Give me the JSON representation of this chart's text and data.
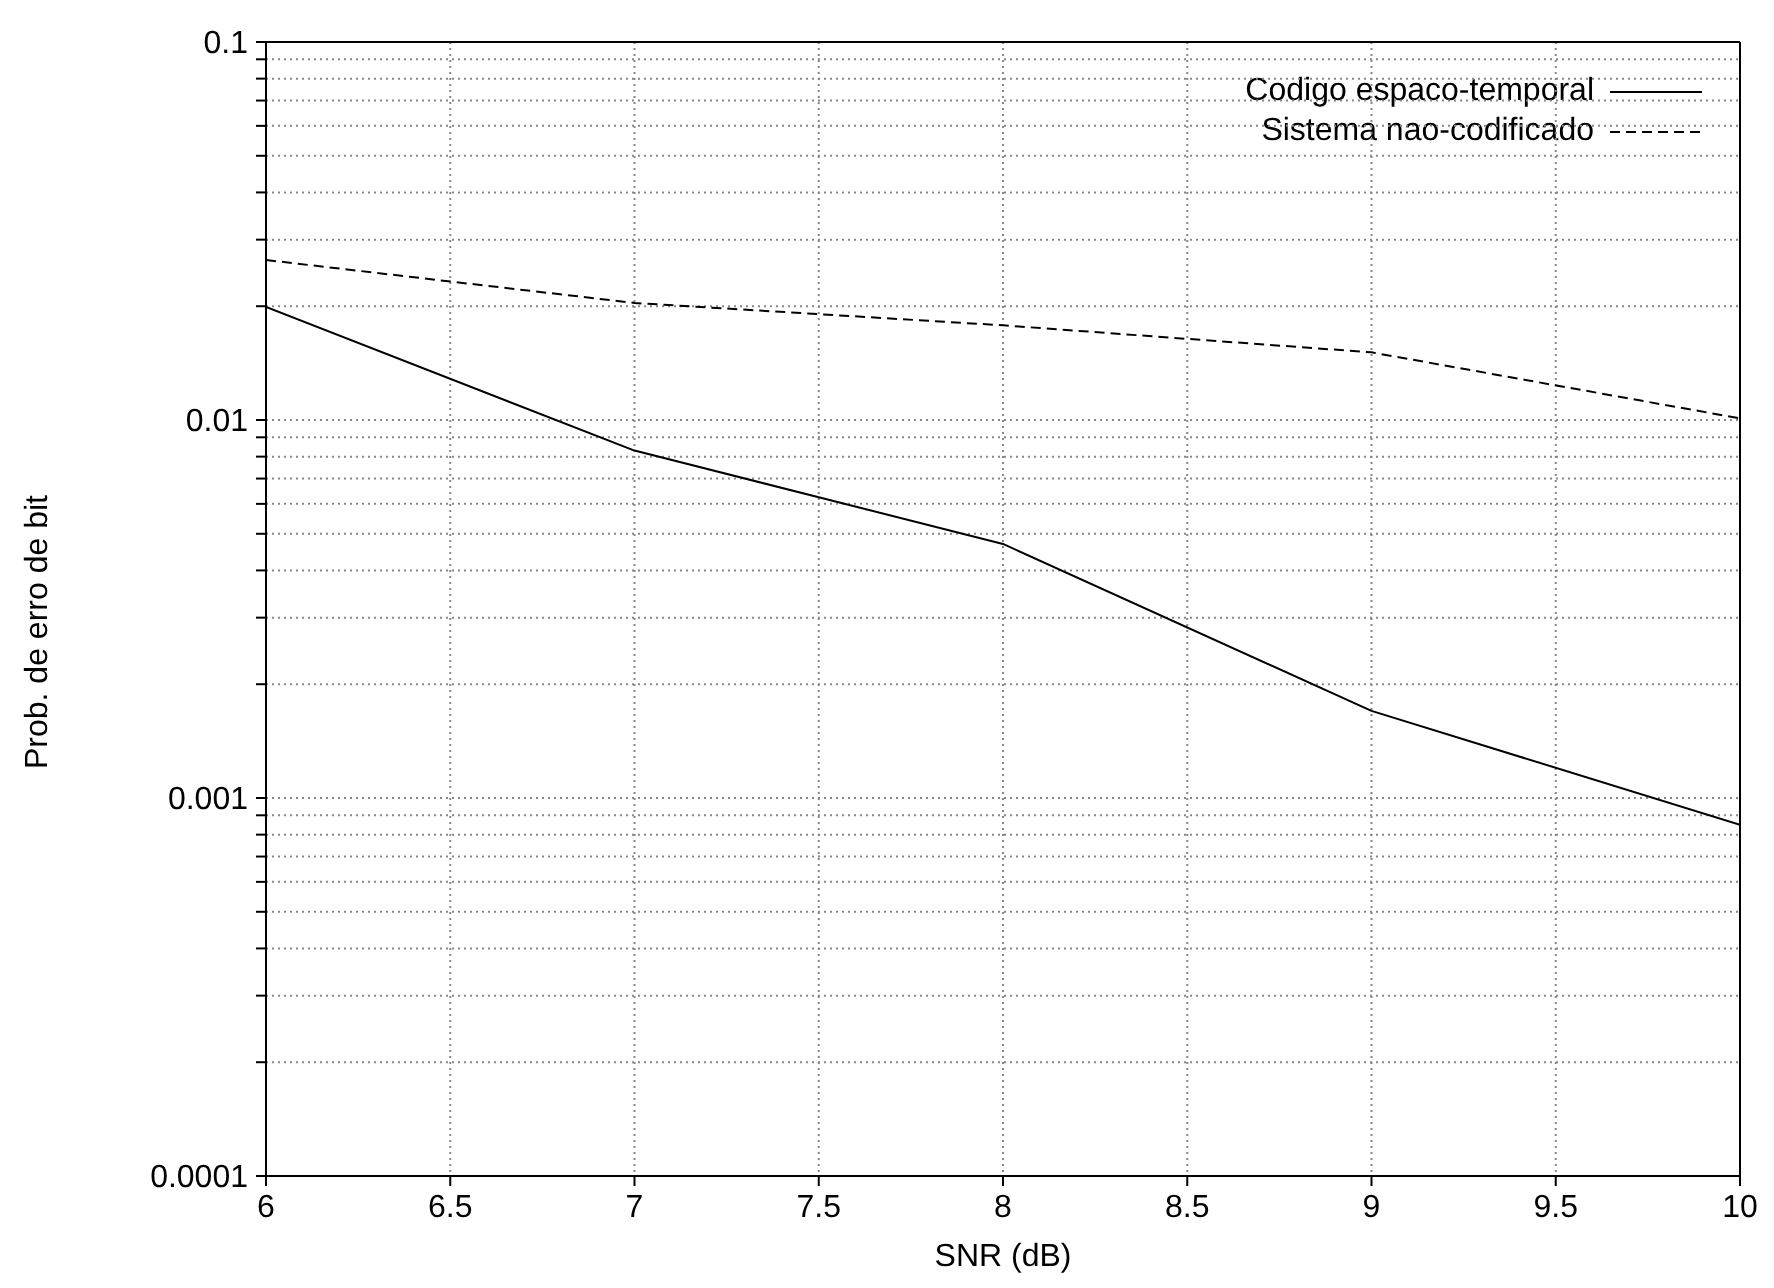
{
  "chart_data": {
    "type": "line",
    "xlabel": "SNR (dB)",
    "ylabel": "Prob. de erro de bit",
    "log": "y",
    "grid": true,
    "legend": "top right",
    "marker": "none",
    "x": [
      6,
      7,
      8,
      9,
      10
    ],
    "series": [
      {
        "name": "Codigo espaco-temporal",
        "color": "#000000",
        "line_style": "solid",
        "values": [
          0.0199,
          0.0083,
          0.0047,
          0.0017,
          0.00085
        ]
      },
      {
        "name": "Sistema nao-codificado",
        "color": "#000000",
        "line_style": "dashed",
        "values": [
          0.0265,
          0.0204,
          0.0178,
          0.0151,
          0.0101
        ]
      }
    ],
    "xlim": [
      6,
      10
    ],
    "xticks": [
      6,
      6.5,
      7,
      7.5,
      8,
      8.5,
      9,
      9.5,
      10
    ],
    "ylim": [
      0.0001,
      0.1
    ],
    "yticks": [
      0.0001,
      {
        "value": 0.0002,
        "label": null
      },
      {
        "value": 0.0003,
        "label": null
      },
      {
        "value": 0.0004,
        "label": null
      },
      {
        "value": 0.0005,
        "label": null
      },
      {
        "value": 0.0006,
        "label": null
      },
      {
        "value": 0.0007,
        "label": null
      },
      {
        "value": 0.0008,
        "label": null
      },
      {
        "value": 0.0009,
        "label": null
      },
      0.001,
      {
        "value": 0.002,
        "label": null
      },
      {
        "value": 0.003,
        "label": null
      },
      {
        "value": 0.004,
        "label": null
      },
      {
        "value": 0.005,
        "label": null
      },
      {
        "value": 0.006,
        "label": null
      },
      {
        "value": 0.007,
        "label": null
      },
      {
        "value": 0.008,
        "label": null
      },
      {
        "value": 0.009,
        "label": null
      },
      0.01,
      {
        "value": 0.02,
        "label": null
      },
      {
        "value": 0.03,
        "label": null
      },
      {
        "value": 0.04,
        "label": null
      },
      {
        "value": 0.05,
        "label": null
      },
      {
        "value": 0.06,
        "label": null
      },
      {
        "value": 0.07,
        "label": null
      },
      {
        "value": 0.08,
        "label": null
      },
      {
        "value": 0.09,
        "label": null
      },
      0.1
    ]
  }
}
